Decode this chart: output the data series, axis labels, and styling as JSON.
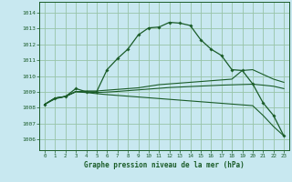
{
  "title": "Graphe pression niveau de la mer (hPa)",
  "bg_color": "#c8e8f0",
  "grid_color": "#98c4a8",
  "line_color": "#1a5c28",
  "x_ticks": [
    0,
    1,
    2,
    3,
    4,
    5,
    6,
    7,
    8,
    9,
    10,
    11,
    12,
    13,
    14,
    15,
    16,
    17,
    18,
    19,
    20,
    21,
    22,
    23
  ],
  "y_ticks": [
    1006,
    1007,
    1008,
    1009,
    1010,
    1011,
    1012,
    1013,
    1014
  ],
  "ylim": [
    1005.3,
    1014.7
  ],
  "xlim": [
    -0.5,
    23.5
  ],
  "line1_y": [
    1008.2,
    1008.6,
    1008.7,
    1009.2,
    1009.0,
    1009.0,
    1010.4,
    1011.1,
    1011.7,
    1012.6,
    1013.05,
    1013.1,
    1013.4,
    1013.35,
    1013.2,
    1012.3,
    1011.7,
    1011.3,
    1010.4,
    1010.35,
    1009.5,
    1008.3,
    1007.5,
    1006.2
  ],
  "line2_y": [
    1008.2,
    1008.6,
    1008.7,
    1009.0,
    1009.05,
    1009.05,
    1009.1,
    1009.15,
    1009.2,
    1009.25,
    1009.35,
    1009.45,
    1009.5,
    1009.55,
    1009.6,
    1009.65,
    1009.7,
    1009.75,
    1009.8,
    1010.35,
    1010.4,
    1010.1,
    1009.8,
    1009.6
  ],
  "line3_y": [
    1008.2,
    1008.6,
    1008.7,
    1009.0,
    1008.95,
    1008.88,
    1008.82,
    1008.77,
    1008.72,
    1008.67,
    1008.62,
    1008.57,
    1008.52,
    1008.47,
    1008.42,
    1008.37,
    1008.32,
    1008.27,
    1008.22,
    1008.17,
    1008.12,
    1007.5,
    1006.8,
    1006.2
  ],
  "line4_y": [
    1008.2,
    1008.55,
    1008.7,
    1009.02,
    1008.98,
    1008.95,
    1008.98,
    1009.02,
    1009.07,
    1009.12,
    1009.17,
    1009.22,
    1009.27,
    1009.3,
    1009.33,
    1009.36,
    1009.39,
    1009.42,
    1009.44,
    1009.46,
    1009.48,
    1009.42,
    1009.35,
    1009.2
  ]
}
